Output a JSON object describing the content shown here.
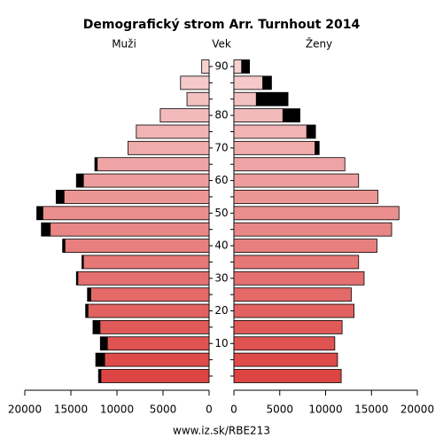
{
  "chart_data": {
    "type": "pyramid",
    "title": "Demografický strom Arr. Turnhout 2014",
    "left_label": "Muži",
    "center_label": "Vek",
    "right_label": "Ženy",
    "source": "www.iz.sk/RBE213",
    "categories": [
      null,
      null,
      "10",
      null,
      "20",
      null,
      "30",
      null,
      "40",
      null,
      "50",
      null,
      "60",
      null,
      "70",
      null,
      "80",
      null,
      null,
      "90"
    ],
    "series": [
      {
        "name": "Muži",
        "color": "#dd4444",
        "values": [
          12000,
          12300,
          11800,
          12600,
          13400,
          13200,
          14400,
          13800,
          15900,
          18200,
          18700,
          16600,
          14400,
          12400,
          8800,
          7900,
          5300,
          2400,
          3100,
          800
        ]
      },
      {
        "name": "Ženy",
        "color": "#dd4444",
        "values": [
          11700,
          11300,
          11000,
          11800,
          13100,
          12800,
          14200,
          13600,
          15600,
          17200,
          18000,
          15700,
          13600,
          12100,
          9300,
          8900,
          7200,
          5900,
          4100,
          1700
        ]
      }
    ],
    "excess_color": "#000000",
    "xlim": [
      0,
      20000
    ],
    "xticks": [
      0,
      5000,
      10000,
      15000,
      20000
    ]
  }
}
